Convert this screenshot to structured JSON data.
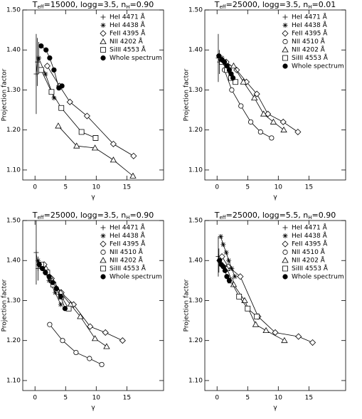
{
  "chart_data": [
    {
      "type": "scatter",
      "title": [
        "T",
        "eff",
        "=15000, logg=3.5, n",
        "H",
        "=0.90"
      ],
      "xlabel": "γ",
      "ylabel": "Projection factor",
      "xlim": [
        -2,
        21
      ],
      "ylim": [
        1.075,
        1.5
      ],
      "xticks": [
        0,
        5,
        10,
        15
      ],
      "yticks": [
        {
          "value": 1.1,
          "label": "1.10"
        },
        {
          "value": 1.2,
          "label": "1.20"
        },
        {
          "value": 1.3,
          "label": "1.30"
        },
        {
          "value": 1.4,
          "label": "1.40"
        },
        {
          "value": 1.5,
          "label": "1.50"
        }
      ],
      "legend": "upper right",
      "color": "#000000",
      "series": [
        {
          "name": "HeI 4471 Å",
          "marker": "plus",
          "x": [
            0.2,
            0.4,
            0.6
          ],
          "values": [
            1.34,
            1.37,
            1.38
          ],
          "errors": [
            0.1,
            0.06,
            0.04
          ]
        },
        {
          "name": "HeI 4438 Å",
          "marker": "asterisk",
          "x": [
            0.6,
            1.7,
            3.1
          ],
          "values": [
            1.38,
            1.34,
            1.28
          ]
        },
        {
          "name": "FeII 4395 Å",
          "marker": "diamond",
          "x": [
            2,
            4,
            5.7,
            8.5,
            12.8,
            16.1
          ],
          "values": [
            1.36,
            1.31,
            1.27,
            1.235,
            1.165,
            1.135
          ]
        },
        {
          "name": "NII 4202 Å",
          "marker": "triangle",
          "x": [
            3.8,
            6.8,
            9.8,
            12.8,
            16
          ],
          "values": [
            1.21,
            1.16,
            1.155,
            1.125,
            1.085
          ]
        },
        {
          "name": "SiIII 4553 Å",
          "marker": "square",
          "x": [
            1,
            2.7,
            4.3,
            7.6,
            9.9
          ],
          "values": [
            1.35,
            1.295,
            1.255,
            1.195,
            1.18
          ]
        },
        {
          "name": "Whole spectrum",
          "marker": "filled-circle",
          "x": [
            1,
            1.8,
            2.4,
            3.1,
            3.9,
            4.4
          ],
          "values": [
            1.41,
            1.4,
            1.38,
            1.35,
            1.305,
            1.31
          ]
        }
      ]
    },
    {
      "type": "scatter",
      "title": [
        "T",
        "eff",
        "=25000, logg=3.5, n",
        "H",
        "=0.01"
      ],
      "xlabel": "γ",
      "ylabel": "Projection factor",
      "xlim": [
        -2,
        21
      ],
      "ylim": [
        1.075,
        1.5
      ],
      "xticks": [
        0,
        5,
        10,
        15
      ],
      "yticks": [
        {
          "value": 1.1,
          "label": "1.10"
        },
        {
          "value": 1.2,
          "label": "1.20"
        },
        {
          "value": 1.3,
          "label": "1.30"
        },
        {
          "value": 1.4,
          "label": "1.40"
        },
        {
          "value": 1.5,
          "label": "1.50"
        }
      ],
      "legend": "upper right",
      "color": "#000000",
      "series": [
        {
          "name": "HeI 4471 Å",
          "marker": "plus",
          "x": [
            0.2,
            0.4
          ],
          "values": [
            1.38,
            1.37
          ],
          "errors": [
            0.06,
            0.03
          ]
        },
        {
          "name": "HeI 4438 Å",
          "marker": "asterisk",
          "x": [
            0.3,
            0.8,
            1.3,
            1.8
          ],
          "values": [
            1.385,
            1.38,
            1.37,
            1.36
          ]
        },
        {
          "name": "FeII 4395 Å",
          "marker": "diamond",
          "x": [
            1.5,
            3.2,
            4.8,
            6.5,
            8.3,
            10.8,
            13.2
          ],
          "values": [
            1.37,
            1.35,
            1.32,
            1.29,
            1.24,
            1.22,
            1.195
          ]
        },
        {
          "name": "NII 4510 Å",
          "marker": "circle",
          "x": [
            1.2,
            2.4,
            3.9,
            5.5,
            7.1,
            8.9
          ],
          "values": [
            1.35,
            1.3,
            1.26,
            1.22,
            1.195,
            1.18
          ]
        },
        {
          "name": "NII 4202 Å",
          "marker": "triangle",
          "x": [
            2.7,
            4.3,
            6.1,
            7.6,
            9.2,
            10.9
          ],
          "values": [
            1.36,
            1.32,
            1.28,
            1.24,
            1.22,
            1.2
          ]
        },
        {
          "name": "SiIII 4553 Å",
          "marker": "square",
          "x": [
            0.8,
            1.6,
            2.3,
            3
          ],
          "values": [
            1.37,
            1.35,
            1.33,
            1.32
          ]
        },
        {
          "name": "Whole spectrum",
          "marker": "filled-circle",
          "x": [
            0.3,
            0.8,
            1.2,
            1.6,
            2,
            2.3,
            2.6
          ],
          "values": [
            1.385,
            1.375,
            1.37,
            1.36,
            1.35,
            1.34,
            1.33
          ]
        }
      ]
    },
    {
      "type": "scatter",
      "title": [
        "T",
        "eff",
        "=25000, logg=3.5, n",
        "H",
        "=0.90"
      ],
      "xlabel": "γ",
      "ylabel": "Projection factor",
      "xlim": [
        -2,
        21
      ],
      "ylim": [
        1.075,
        1.5
      ],
      "xticks": [
        0,
        5,
        10,
        15
      ],
      "yticks": [
        {
          "value": 1.1,
          "label": "1.10"
        },
        {
          "value": 1.2,
          "label": "1.20"
        },
        {
          "value": 1.3,
          "label": "1.30"
        },
        {
          "value": 1.4,
          "label": "1.40"
        },
        {
          "value": 1.5,
          "label": "1.50"
        }
      ],
      "legend": "upper right",
      "color": "#000000",
      "series": [
        {
          "name": "HeI 4471 Å",
          "marker": "plus",
          "x": [
            0.2,
            0.5
          ],
          "values": [
            1.42,
            1.38
          ],
          "errors": [
            0.08,
            0.03
          ]
        },
        {
          "name": "HeI 4438 Å",
          "marker": "asterisk",
          "x": [
            0.5,
            1,
            1.7,
            2.3,
            3.3,
            4.2
          ],
          "values": [
            1.4,
            1.385,
            1.37,
            1.35,
            1.32,
            1.29
          ]
        },
        {
          "name": "FeII 4395 Å",
          "marker": "diamond",
          "x": [
            1.5,
            2.7,
            4.3,
            6.3,
            9,
            11.5,
            14.3
          ],
          "values": [
            1.39,
            1.355,
            1.32,
            1.29,
            1.235,
            1.22,
            1.2
          ]
        },
        {
          "name": "NII 4510 Å",
          "marker": "circle",
          "x": [
            2.4,
            4.5,
            6.7,
            8.9,
            10.9
          ],
          "values": [
            1.24,
            1.2,
            1.17,
            1.155,
            1.14
          ]
        },
        {
          "name": "NII 4202 Å",
          "marker": "triangle",
          "x": [
            1.8,
            2.8,
            4.2,
            5.8,
            7.4,
            9.8,
            11.7
          ],
          "values": [
            1.38,
            1.35,
            1.32,
            1.29,
            1.26,
            1.205,
            1.185
          ]
        },
        {
          "name": "SiIII 4553 Å",
          "marker": "square",
          "x": [
            1,
            2,
            3,
            4.3,
            5.5
          ],
          "values": [
            1.39,
            1.37,
            1.34,
            1.31,
            1.28
          ]
        },
        {
          "name": "Whole spectrum",
          "marker": "filled-circle",
          "x": [
            0.7,
            1.2,
            1.7,
            2.3,
            2.9,
            3.5,
            4.2,
            4.9
          ],
          "values": [
            1.39,
            1.38,
            1.37,
            1.36,
            1.345,
            1.33,
            1.31,
            1.28
          ]
        }
      ]
    },
    {
      "type": "scatter",
      "title": [
        "T",
        "eff",
        "=25000, logg=5.5, n",
        "H",
        "=0.90"
      ],
      "xlabel": "γ",
      "ylabel": "Projection factor",
      "xlim": [
        -2,
        21
      ],
      "ylim": [
        1.075,
        1.5
      ],
      "xticks": [
        0,
        5,
        10,
        15
      ],
      "yticks": [
        {
          "value": 1.1,
          "label": "1.10"
        },
        {
          "value": 1.2,
          "label": "1.20"
        },
        {
          "value": 1.3,
          "label": "1.30"
        },
        {
          "value": 1.4,
          "label": "1.40"
        },
        {
          "value": 1.5,
          "label": "1.50"
        }
      ],
      "legend": "upper right",
      "color": "#000000",
      "series": [
        {
          "name": "HeI 4471 Å",
          "marker": "plus",
          "x": [
            0.2,
            0.3
          ],
          "values": [
            1.41,
            1.4
          ],
          "errors": [
            0.05,
            0.03
          ]
        },
        {
          "name": "HeI 4438 Å",
          "marker": "asterisk",
          "x": [
            0.6,
            1,
            1.5,
            1.9,
            2.4,
            2.9
          ],
          "values": [
            1.46,
            1.44,
            1.42,
            1.4,
            1.38,
            1.36
          ]
        },
        {
          "name": "FeII 4395 Å",
          "marker": "diamond",
          "x": [
            0.8,
            1.8,
            3.8,
            6.7,
            9.5,
            13.3,
            15.6
          ],
          "values": [
            1.41,
            1.385,
            1.36,
            1.26,
            1.22,
            1.21,
            1.195
          ]
        },
        {
          "name": "NII 4510 Å",
          "marker": "circle",
          "x": [],
          "values": []
        },
        {
          "name": "NII 4202 Å",
          "marker": "triangle",
          "x": [
            1.6,
            2.7,
            4.5,
            6.3,
            8,
            11
          ],
          "values": [
            1.38,
            1.34,
            1.3,
            1.24,
            1.225,
            1.2
          ]
        },
        {
          "name": "SiIII 4553 Å",
          "marker": "square",
          "x": [
            2.2,
            3.6,
            5,
            6.5
          ],
          "values": [
            1.35,
            1.31,
            1.28,
            1.26
          ]
        },
        {
          "name": "Whole spectrum",
          "marker": "filled-circle",
          "x": [
            0.4,
            0.7,
            1,
            1.3,
            1.6,
            2
          ],
          "values": [
            1.4,
            1.39,
            1.385,
            1.375,
            1.36,
            1.35
          ]
        }
      ]
    }
  ]
}
